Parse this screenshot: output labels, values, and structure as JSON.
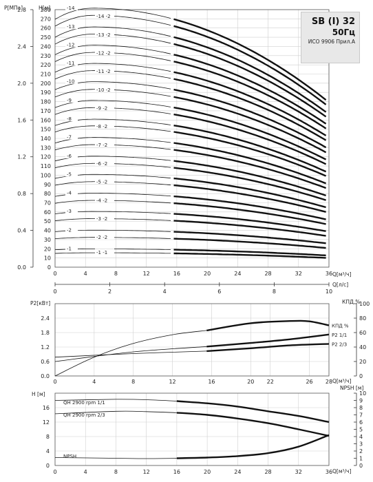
{
  "title_box": {
    "model": "SB (I) 32",
    "freq": "50Гц",
    "standard": "ИСО 9906 Прил.А"
  },
  "chart_data": [
    {
      "type": "line",
      "id": "qh",
      "ylabel_left": "P[МПа]",
      "ylabel": "H[м]",
      "xlabel": "Q[м³/ч]",
      "xlabel_secondary": "Q[л/с]",
      "xlim": [
        0,
        36
      ],
      "ylim": [
        0,
        280
      ],
      "xticks": [
        0,
        4,
        8,
        12,
        16,
        20,
        24,
        28,
        32,
        36
      ],
      "yticks": [
        0,
        10,
        20,
        30,
        40,
        50,
        60,
        70,
        80,
        90,
        100,
        110,
        120,
        130,
        140,
        150,
        160,
        170,
        180,
        190,
        200,
        210,
        220,
        230,
        240,
        250,
        260,
        270,
        280
      ],
      "yticks_left": [
        0.0,
        0.4,
        0.8,
        1.2,
        1.6,
        2.0,
        2.4,
        2.8
      ],
      "xticks_secondary": [
        0,
        2,
        4,
        6,
        8,
        10
      ],
      "grid": true,
      "curve_shape": {
        "peak_x": 5,
        "peak_scale": 1.045,
        "end_x": 36,
        "end_scale": 0.665
      },
      "series": [
        {
          "name": "-14",
          "h0": 269.5
        },
        {
          "name": "-14 -2",
          "h0": 262
        },
        {
          "name": "-13",
          "h0": 250
        },
        {
          "name": "-13 -2",
          "h0": 242.5
        },
        {
          "name": "-12",
          "h0": 231
        },
        {
          "name": "-12 -2",
          "h0": 223.5
        },
        {
          "name": "-11",
          "h0": 212
        },
        {
          "name": "-11 -2",
          "h0": 204.5
        },
        {
          "name": "-10",
          "h0": 193
        },
        {
          "name": "-10 -2",
          "h0": 185
        },
        {
          "name": "-9",
          "h0": 173.5
        },
        {
          "name": "-9 -2",
          "h0": 166
        },
        {
          "name": "-8",
          "h0": 154
        },
        {
          "name": "-8 -2",
          "h0": 147
        },
        {
          "name": "-7",
          "h0": 135
        },
        {
          "name": "-7 -2",
          "h0": 127.5
        },
        {
          "name": "-6",
          "h0": 115.5
        },
        {
          "name": "-6 -2",
          "h0": 108
        },
        {
          "name": "-5",
          "h0": 96.5
        },
        {
          "name": "-5 -2",
          "h0": 89
        },
        {
          "name": "-4",
          "h0": 77
        },
        {
          "name": "-4 -2",
          "h0": 69.5
        },
        {
          "name": "-3",
          "h0": 58
        },
        {
          "name": "-3 -2",
          "h0": 50.5
        },
        {
          "name": "-2",
          "h0": 38.5
        },
        {
          "name": "-2 -2",
          "h0": 31
        },
        {
          "name": "-1",
          "h0": 19
        },
        {
          "name": "-1 -1",
          "h0": 15
        }
      ]
    },
    {
      "type": "line",
      "id": "power_eff",
      "ylabel": "P2[кВт]",
      "ylabel_right": "КПД %",
      "xlabel": "Q[м³/ч]",
      "xlim": [
        0,
        28
      ],
      "ylim": [
        0,
        3.0
      ],
      "ylim_right": [
        0,
        100
      ],
      "xticks": [
        0,
        4,
        8,
        12,
        16,
        20,
        22,
        26,
        28
      ],
      "yticks": [
        0.0,
        0.6,
        1.2,
        1.8,
        2.4
      ],
      "yticks_right": [
        0,
        20,
        40,
        60,
        80,
        100
      ],
      "series": [
        {
          "name": "КПД %",
          "axis": "right",
          "x": [
            0,
            4,
            8,
            12,
            15.5,
            20,
            24,
            26,
            28
          ],
          "y": [
            0,
            26,
            45,
            57,
            63,
            73,
            76,
            75.5,
            70
          ]
        },
        {
          "name": "P2 1/1",
          "axis": "left",
          "x": [
            0,
            8,
            15.5,
            20,
            24,
            28
          ],
          "y": [
            0.6,
            1.0,
            1.22,
            1.37,
            1.52,
            1.72
          ]
        },
        {
          "name": "P2 2/3",
          "axis": "left",
          "x": [
            0,
            8,
            15.5,
            20,
            24,
            28
          ],
          "y": [
            0.78,
            0.93,
            1.03,
            1.15,
            1.27,
            1.33
          ]
        }
      ]
    },
    {
      "type": "line",
      "id": "qh_npsh",
      "ylabel": "H [м]",
      "ylabel_right": "NPSH [м]",
      "xlabel": "Q[м³/ч]",
      "xlim": [
        0,
        36
      ],
      "ylim": [
        0,
        20
      ],
      "ylim_right": [
        0,
        10
      ],
      "xticks": [
        0,
        4,
        8,
        12,
        16,
        20,
        24,
        28,
        32,
        36
      ],
      "yticks": [
        0,
        4,
        8,
        12,
        16
      ],
      "yticks_right": [
        0,
        1,
        2,
        3,
        4,
        5,
        6,
        7,
        8,
        9,
        10
      ],
      "series": [
        {
          "name": "QH 2900 rpm 1/1",
          "axis": "left",
          "x": [
            0,
            8,
            12,
            16,
            20,
            24,
            28,
            32,
            36
          ],
          "y": [
            18,
            18.3,
            18.2,
            17.8,
            17.2,
            16.3,
            15,
            13.7,
            12
          ]
        },
        {
          "name": "QH 2900 rpm 2/3",
          "axis": "left",
          "x": [
            0,
            8,
            12,
            16,
            20,
            24,
            28,
            32,
            36
          ],
          "y": [
            14.3,
            15,
            14.9,
            14.6,
            14,
            13,
            11.7,
            10,
            8.2
          ]
        },
        {
          "name": "NPSH",
          "axis": "right",
          "x": [
            0,
            8,
            12,
            16,
            20,
            24,
            28,
            32,
            36
          ],
          "y": [
            1.1,
            1.0,
            0.95,
            1.0,
            1.1,
            1.3,
            1.7,
            2.6,
            4.2
          ]
        }
      ]
    }
  ]
}
